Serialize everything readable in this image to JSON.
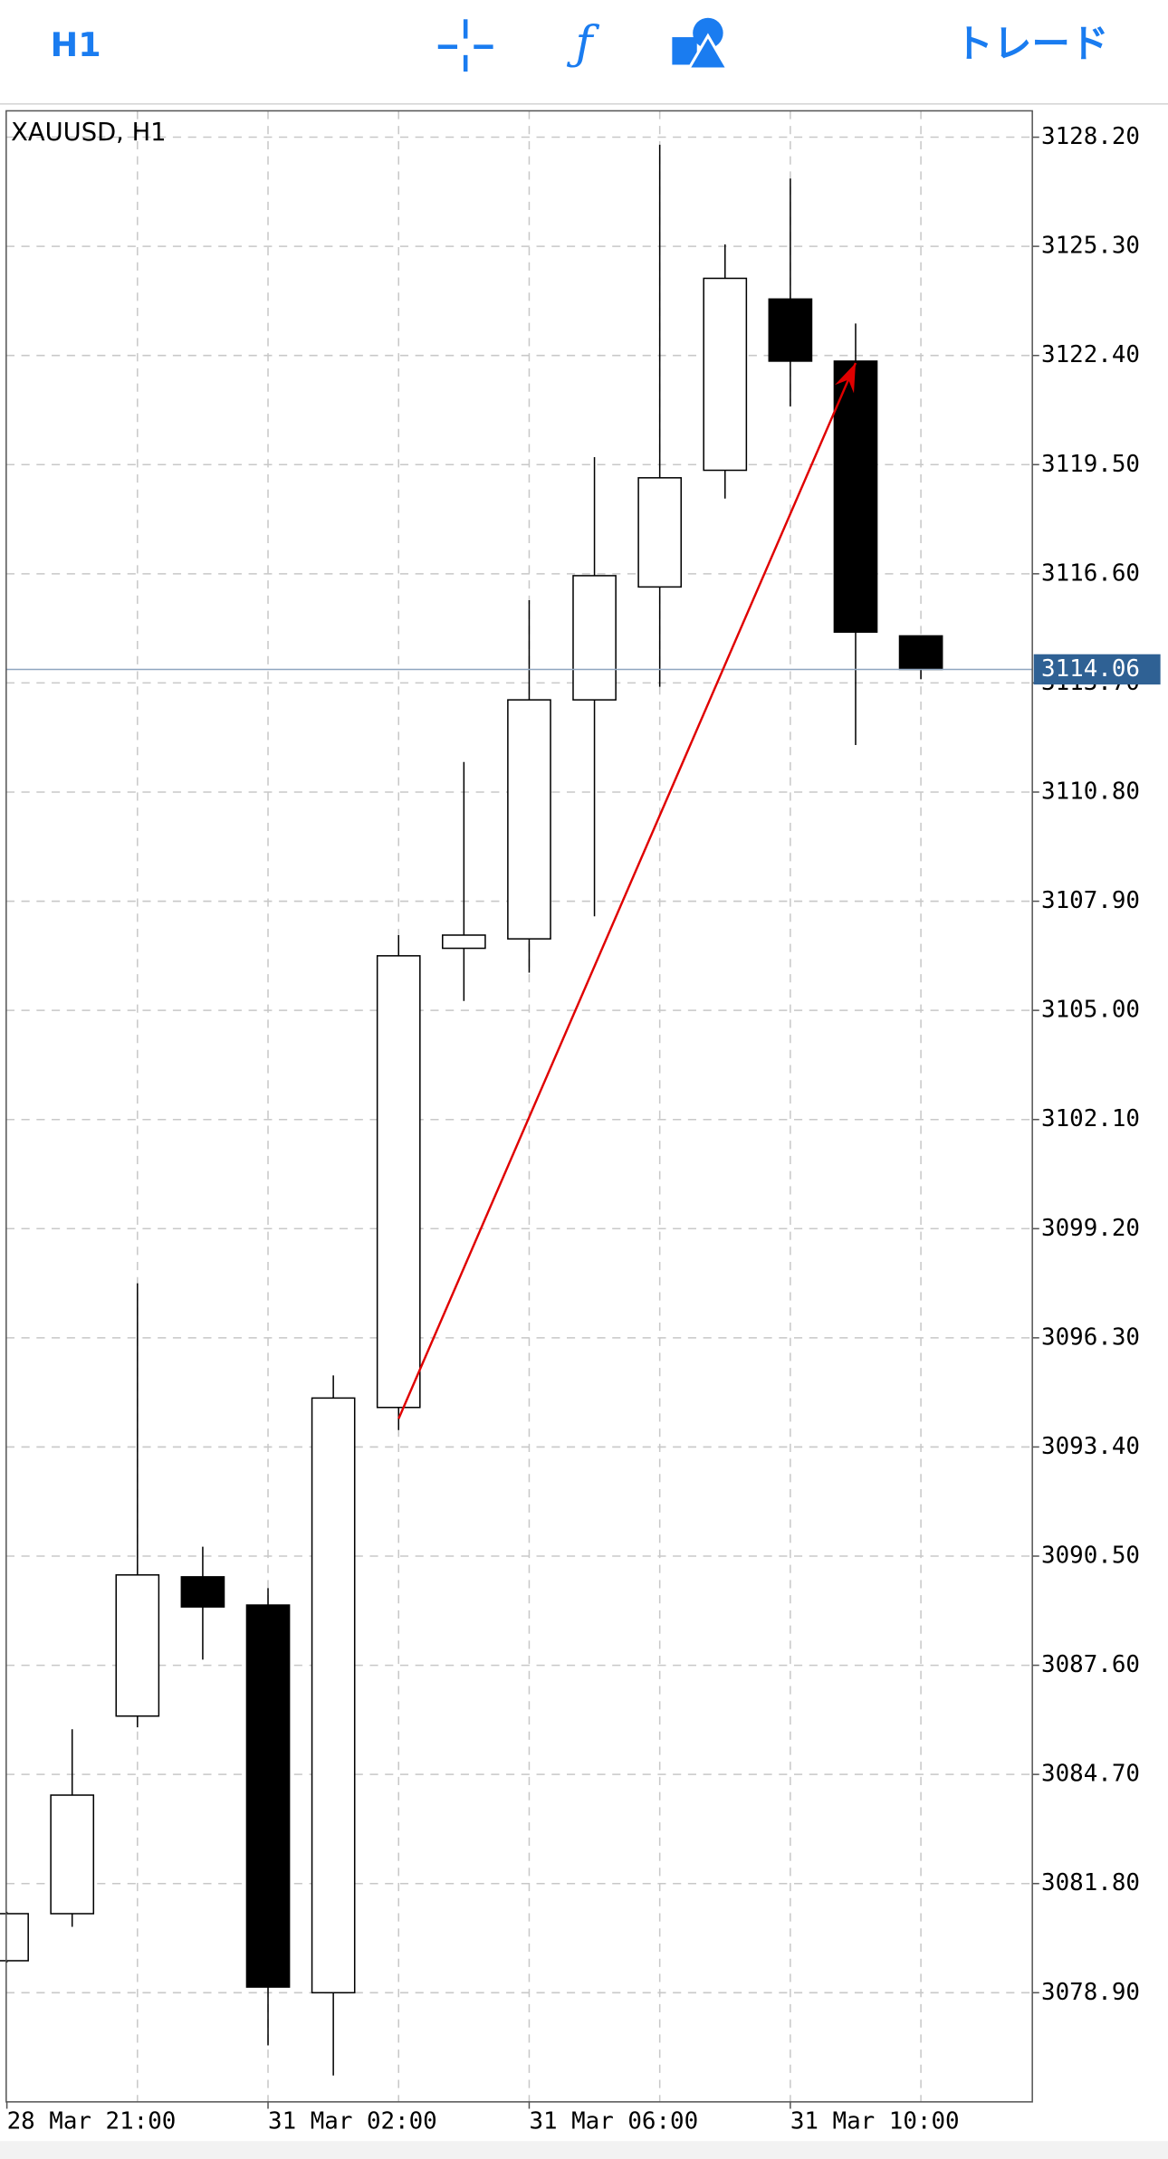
{
  "toolbar": {
    "timeframe": "H1",
    "trade": "トレード"
  },
  "chart_data": {
    "type": "candlestick",
    "title": "XAUUSD, H1",
    "categories": [
      "28 Mar 21:00",
      null,
      null,
      null,
      "31 Mar 02:00",
      null,
      null,
      null,
      "31 Mar 06:00",
      null,
      null,
      null,
      "31 Mar 10:00",
      null,
      null
    ],
    "open": [
      3079.75,
      3081.0,
      3086.25,
      3089.95,
      3089.2,
      3078.9,
      3094.45,
      3106.65,
      3106.9,
      3113.25,
      3116.25,
      3119.35,
      3123.9,
      3122.25,
      3114.95
    ],
    "high": [
      3081.05,
      3085.9,
      3097.75,
      3090.75,
      3089.65,
      3095.3,
      3107.0,
      3111.6,
      3115.9,
      3119.7,
      3128.0,
      3125.35,
      3127.1,
      3123.25,
      3114.95
    ],
    "low": [
      3079.7,
      3080.65,
      3085.95,
      3087.75,
      3077.5,
      3076.7,
      3093.85,
      3105.25,
      3106.0,
      3107.5,
      3113.6,
      3118.6,
      3121.05,
      3112.05,
      3113.8
    ],
    "close": [
      3081.0,
      3084.15,
      3090.0,
      3089.15,
      3079.05,
      3094.7,
      3106.45,
      3107.0,
      3113.25,
      3116.55,
      3119.15,
      3124.45,
      3122.25,
      3115.05,
      3114.06
    ],
    "up_color": "#ffffff",
    "down_color": "#000000",
    "wick_color": "#000000",
    "ylim": [
      3076.0,
      3128.9
    ],
    "yticks": [
      {
        "value": 3128.2,
        "label": "3128.20"
      },
      {
        "value": 3125.3,
        "label": "3125.30"
      },
      {
        "value": 3122.4,
        "label": "3122.40"
      },
      {
        "value": 3119.5,
        "label": "3119.50"
      },
      {
        "value": 3116.6,
        "label": "3116.60"
      },
      {
        "value": 3113.7,
        "label": "3113.70"
      },
      {
        "value": 3110.8,
        "label": "3110.80"
      },
      {
        "value": 3107.9,
        "label": "3107.90"
      },
      {
        "value": 3105.0,
        "label": "3105.00"
      },
      {
        "value": 3102.1,
        "label": "3102.10"
      },
      {
        "value": 3099.2,
        "label": "3099.20"
      },
      {
        "value": 3096.3,
        "label": "3096.30"
      },
      {
        "value": 3093.4,
        "label": "3093.40"
      },
      {
        "value": 3090.5,
        "label": "3090.50"
      },
      {
        "value": 3087.6,
        "label": "3087.60"
      },
      {
        "value": 3084.7,
        "label": "3084.70"
      },
      {
        "value": 3081.8,
        "label": "3081.80"
      },
      {
        "value": 3078.9,
        "label": "3078.90"
      }
    ],
    "grid": true,
    "grid_color": "#c8c8c8",
    "last_price": 3114.06,
    "last_price_color": "#2f6194",
    "arrow": {
      "color": "#e00000",
      "start": [
        6,
        3094.15
      ],
      "end": [
        13,
        3122.2
      ]
    }
  }
}
